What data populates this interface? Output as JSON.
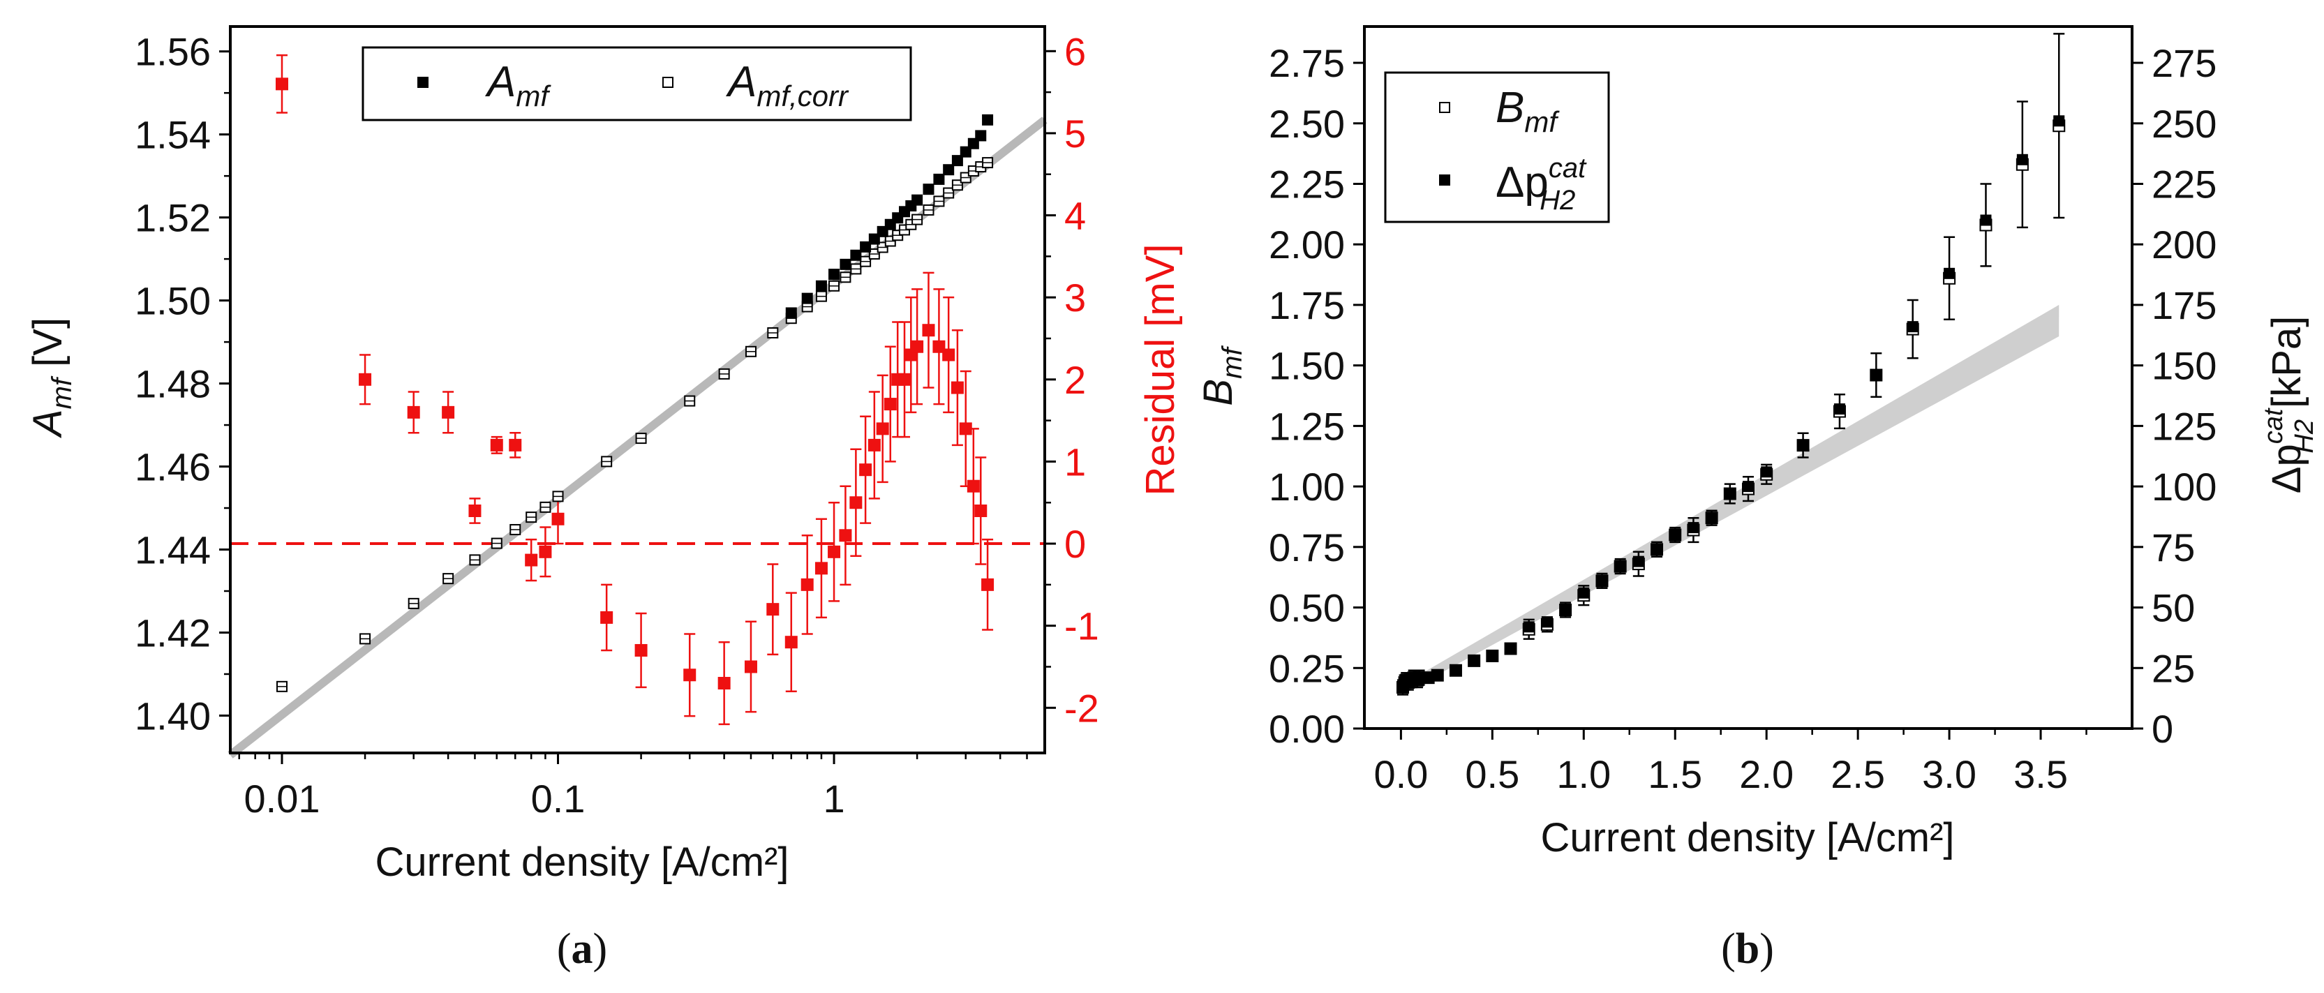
{
  "chart_data": [
    {
      "id": "a",
      "type": "scatter",
      "panel_label": "a",
      "xscale": "log",
      "xlim": [
        0.0065,
        5.8
      ],
      "ylim": [
        1.391,
        1.566
      ],
      "y2lim": [
        -2.55,
        6.3
      ],
      "xlabel": "Current density [A/cm²]",
      "ylabel": {
        "base": "A",
        "sub": "mf",
        "unit": " [V]"
      },
      "y2label": "Residual [mV]",
      "x_ticks": [
        {
          "v": 0.01,
          "label": "0.01"
        },
        {
          "v": 0.1,
          "label": "0.1"
        },
        {
          "v": 1,
          "label": "1"
        }
      ],
      "y_ticks": [
        {
          "v": 1.4,
          "label": "1.40"
        },
        {
          "v": 1.42,
          "label": "1.42"
        },
        {
          "v": 1.44,
          "label": "1.44"
        },
        {
          "v": 1.46,
          "label": "1.46"
        },
        {
          "v": 1.48,
          "label": "1.48"
        },
        {
          "v": 1.5,
          "label": "1.50"
        },
        {
          "v": 1.52,
          "label": "1.52"
        },
        {
          "v": 1.54,
          "label": "1.54"
        },
        {
          "v": 1.56,
          "label": "1.56"
        }
      ],
      "y2_ticks": [
        {
          "v": -2,
          "label": "-2"
        },
        {
          "v": -1,
          "label": "-1"
        },
        {
          "v": 0,
          "label": "0"
        },
        {
          "v": 1,
          "label": "1"
        },
        {
          "v": 2,
          "label": "2"
        },
        {
          "v": 3,
          "label": "3"
        },
        {
          "v": 4,
          "label": "4"
        },
        {
          "v": 5,
          "label": "5"
        },
        {
          "v": 6,
          "label": "6"
        }
      ],
      "legend": [
        {
          "marker": "filled-square",
          "base": "A",
          "sub": "mf",
          "sup": ""
        },
        {
          "marker": "open-square",
          "base": "A",
          "sub": "mf,corr",
          "sup": ""
        }
      ],
      "colors": {
        "amf": "#000000",
        "residual": "#ee1111",
        "fit": "#b8b8b8"
      },
      "fit_line": {
        "x": [
          0.0065,
          5.8
        ],
        "y": [
          1.3905,
          1.5435
        ]
      },
      "zero_line_y2": 0,
      "series": [
        {
          "name": "A_mf",
          "marker": "filled-square",
          "x": [
            0.7,
            0.8,
            0.9,
            1.0,
            1.1,
            1.2,
            1.3,
            1.4,
            1.5,
            1.6,
            1.7,
            1.8,
            1.9,
            2.0,
            2.2,
            2.4,
            2.6,
            2.8,
            3.0,
            3.2,
            3.4,
            3.6
          ],
          "y": [
            1.497,
            1.5005,
            1.5035,
            1.5063,
            1.5087,
            1.5109,
            1.5129,
            1.5148,
            1.5166,
            1.5183,
            1.5199,
            1.5214,
            1.5228,
            1.5242,
            1.5268,
            1.5292,
            1.5315,
            1.5337,
            1.5358,
            1.5378,
            1.5397,
            1.5435
          ]
        },
        {
          "name": "A_mf,corr",
          "marker": "open-square",
          "x": [
            0.01,
            0.02,
            0.03,
            0.04,
            0.05,
            0.06,
            0.07,
            0.08,
            0.09,
            0.1,
            0.15,
            0.2,
            0.3,
            0.4,
            0.5,
            0.6,
            0.7,
            0.8,
            0.9,
            1.0,
            1.1,
            1.2,
            1.3,
            1.4,
            1.5,
            1.6,
            1.7,
            1.8,
            1.9,
            2.0,
            2.2,
            2.4,
            2.6,
            2.8,
            3.0,
            3.2,
            3.4,
            3.6
          ],
          "y": [
            1.407,
            1.4185,
            1.427,
            1.433,
            1.4375,
            1.4415,
            1.4448,
            1.4478,
            1.4502,
            1.4528,
            1.4612,
            1.4668,
            1.4758,
            1.4823,
            1.4877,
            1.4922,
            1.4957,
            1.4985,
            1.501,
            1.5035,
            1.5056,
            1.5076,
            1.5094,
            1.5112,
            1.5128,
            1.5143,
            1.5157,
            1.517,
            1.5183,
            1.5195,
            1.5218,
            1.5239,
            1.5259,
            1.5278,
            1.5296,
            1.5312,
            1.5322,
            1.5332
          ]
        },
        {
          "name": "Residual",
          "axis": "y2",
          "marker": "filled-square",
          "x": [
            0.01,
            0.02,
            0.03,
            0.04,
            0.05,
            0.06,
            0.07,
            0.08,
            0.09,
            0.1,
            0.15,
            0.2,
            0.3,
            0.4,
            0.5,
            0.6,
            0.7,
            0.8,
            0.9,
            1.0,
            1.1,
            1.2,
            1.3,
            1.4,
            1.5,
            1.6,
            1.7,
            1.8,
            1.9,
            2.0,
            2.2,
            2.4,
            2.6,
            2.8,
            3.0,
            3.2,
            3.4,
            3.6
          ],
          "y": [
            5.6,
            2.0,
            1.6,
            1.6,
            0.4,
            1.2,
            1.2,
            -0.2,
            -0.1,
            0.3,
            -0.9,
            -1.3,
            -1.6,
            -1.7,
            -1.5,
            -0.8,
            -1.2,
            -0.5,
            -0.3,
            -0.1,
            0.1,
            0.5,
            0.9,
            1.2,
            1.4,
            1.7,
            2.0,
            2.0,
            2.3,
            2.4,
            2.6,
            2.4,
            2.3,
            1.9,
            1.4,
            0.7,
            0.4,
            -0.5
          ],
          "err": [
            0.35,
            0.3,
            0.25,
            0.25,
            0.15,
            0.1,
            0.15,
            0.25,
            0.3,
            0.3,
            0.4,
            0.45,
            0.5,
            0.5,
            0.55,
            0.55,
            0.6,
            0.6,
            0.6,
            0.6,
            0.6,
            0.65,
            0.65,
            0.65,
            0.65,
            0.7,
            0.7,
            0.7,
            0.7,
            0.7,
            0.7,
            0.7,
            0.7,
            0.7,
            0.7,
            0.7,
            0.65,
            0.55
          ]
        }
      ]
    },
    {
      "id": "b",
      "type": "scatter",
      "panel_label": "b",
      "xlim": [
        -0.2,
        4.0
      ],
      "ylim": [
        0,
        2.9
      ],
      "y2lim": [
        0,
        290
      ],
      "xlabel": "Current density [A/cm²]",
      "ylabel": {
        "base": "B",
        "sub": "mf"
      },
      "y2label": {
        "prefix": "Δp",
        "sup": "cat",
        "sub": "H2",
        "unit": " [kPa]"
      },
      "x_ticks": [
        {
          "v": 0.0,
          "label": "0.0"
        },
        {
          "v": 0.5,
          "label": "0.5"
        },
        {
          "v": 1.0,
          "label": "1.0"
        },
        {
          "v": 1.5,
          "label": "1.5"
        },
        {
          "v": 2.0,
          "label": "2.0"
        },
        {
          "v": 2.5,
          "label": "2.5"
        },
        {
          "v": 3.0,
          "label": "3.0"
        },
        {
          "v": 3.5,
          "label": "3.5"
        }
      ],
      "y_ticks": [
        {
          "v": 0.0,
          "label": "0.00"
        },
        {
          "v": 0.25,
          "label": "0.25"
        },
        {
          "v": 0.5,
          "label": "0.50"
        },
        {
          "v": 0.75,
          "label": "0.75"
        },
        {
          "v": 1.0,
          "label": "1.00"
        },
        {
          "v": 1.25,
          "label": "1.25"
        },
        {
          "v": 1.5,
          "label": "1.50"
        },
        {
          "v": 1.75,
          "label": "1.75"
        },
        {
          "v": 2.0,
          "label": "2.00"
        },
        {
          "v": 2.25,
          "label": "2.25"
        },
        {
          "v": 2.5,
          "label": "2.50"
        },
        {
          "v": 2.75,
          "label": "2.75"
        }
      ],
      "y2_ticks": [
        {
          "v": 0,
          "label": "0"
        },
        {
          "v": 25,
          "label": "25"
        },
        {
          "v": 50,
          "label": "50"
        },
        {
          "v": 75,
          "label": "75"
        },
        {
          "v": 100,
          "label": "100"
        },
        {
          "v": 125,
          "label": "125"
        },
        {
          "v": 150,
          "label": "150"
        },
        {
          "v": 175,
          "label": "175"
        },
        {
          "v": 200,
          "label": "200"
        },
        {
          "v": 225,
          "label": "225"
        },
        {
          "v": 250,
          "label": "250"
        },
        {
          "v": 275,
          "label": "275"
        }
      ],
      "legend": [
        {
          "marker": "open-square",
          "base": "B",
          "sub": "mf",
          "sup": ""
        },
        {
          "marker": "filled-square",
          "base": "Δp",
          "sub": "H2",
          "sup": "cat"
        }
      ],
      "colors": {
        "band": "#cfcfcf",
        "marker": "#000000"
      },
      "band": {
        "x": [
          0.05,
          3.6
        ],
        "lower": [
          0.16,
          1.62
        ],
        "upper": [
          0.2,
          1.75
        ]
      },
      "series": [
        {
          "name": "B_mf",
          "marker": "open-square",
          "x": [
            0.01,
            0.02,
            0.03,
            0.04,
            0.05,
            0.06,
            0.07,
            0.08,
            0.09,
            0.1,
            0.15,
            0.2,
            0.3,
            0.4,
            0.5,
            0.6,
            0.7,
            0.8,
            0.9,
            1.0,
            1.1,
            1.2,
            1.3,
            1.4,
            1.5,
            1.6,
            1.7,
            1.8,
            1.9,
            2.0,
            2.2,
            2.4,
            2.6,
            2.8,
            3.0,
            3.2,
            3.4,
            3.6
          ],
          "y": [
            0.17,
            0.19,
            0.2,
            0.19,
            0.2,
            0.2,
            0.21,
            0.21,
            0.2,
            0.21,
            0.21,
            0.22,
            0.24,
            0.28,
            0.3,
            0.33,
            0.41,
            0.43,
            0.49,
            0.55,
            0.61,
            0.67,
            0.68,
            0.74,
            0.8,
            0.82,
            0.87,
            0.97,
            0.99,
            1.05,
            1.17,
            1.31,
            1.46,
            1.65,
            1.86,
            2.08,
            2.33,
            2.49
          ],
          "err": [
            0.03,
            0.03,
            0.03,
            0.03,
            0.03,
            0.03,
            0.03,
            0.03,
            0.03,
            0.03,
            0.02,
            0.02,
            0.02,
            0.02,
            0.02,
            0.02,
            0.04,
            0.03,
            0.03,
            0.04,
            0.03,
            0.03,
            0.05,
            0.03,
            0.03,
            0.05,
            0.03,
            0.04,
            0.05,
            0.04,
            0.05,
            0.07,
            0.09,
            0.12,
            0.17,
            0.17,
            0.26,
            0.38
          ]
        },
        {
          "name": "Δp_H2^cat",
          "axis": "y2",
          "marker": "filled-square",
          "x": [
            0.01,
            0.02,
            0.03,
            0.04,
            0.05,
            0.06,
            0.07,
            0.08,
            0.09,
            0.1,
            0.15,
            0.2,
            0.3,
            0.4,
            0.5,
            0.6,
            0.7,
            0.8,
            0.9,
            1.0,
            1.1,
            1.2,
            1.3,
            1.4,
            1.5,
            1.6,
            1.7,
            1.8,
            1.9,
            2.0,
            2.2,
            2.4,
            2.6,
            2.8,
            3.0,
            3.2,
            3.4,
            3.6
          ],
          "y": [
            17,
            19,
            20,
            19,
            20,
            20,
            21,
            21,
            20,
            21,
            21,
            22,
            24,
            28,
            30,
            33,
            42,
            44,
            49,
            56,
            61,
            67,
            69,
            74,
            80,
            83,
            87,
            97,
            100,
            106,
            117,
            132,
            146,
            166,
            188,
            210,
            235,
            251
          ]
        }
      ]
    }
  ],
  "captions": [
    {
      "open": "(",
      "letter": "a",
      "close": ")"
    },
    {
      "open": "(",
      "letter": "b",
      "close": ")"
    }
  ]
}
